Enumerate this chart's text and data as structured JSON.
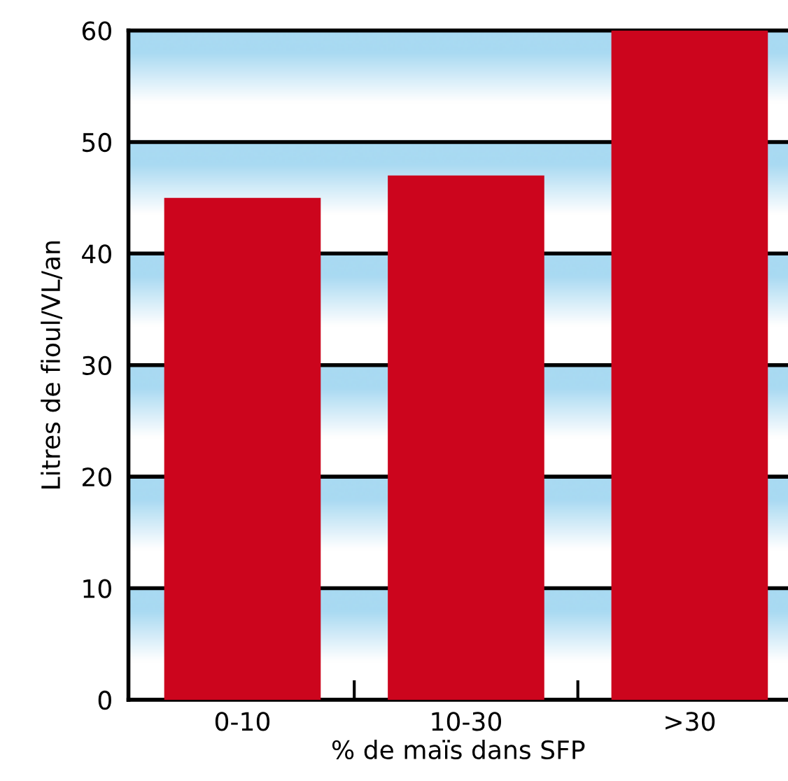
{
  "chart_data": {
    "type": "bar",
    "xlabel": "% de maïs dans SFP",
    "ylabel": "Litres de fioul/VL/an",
    "categories": [
      "0-10",
      "10-30",
      ">30"
    ],
    "values": [
      45,
      47,
      60
    ],
    "color": "#cc051d",
    "ylim": [
      0,
      60
    ],
    "yticks": [
      0,
      10,
      20,
      30,
      40,
      50,
      60
    ],
    "grid": "y"
  }
}
